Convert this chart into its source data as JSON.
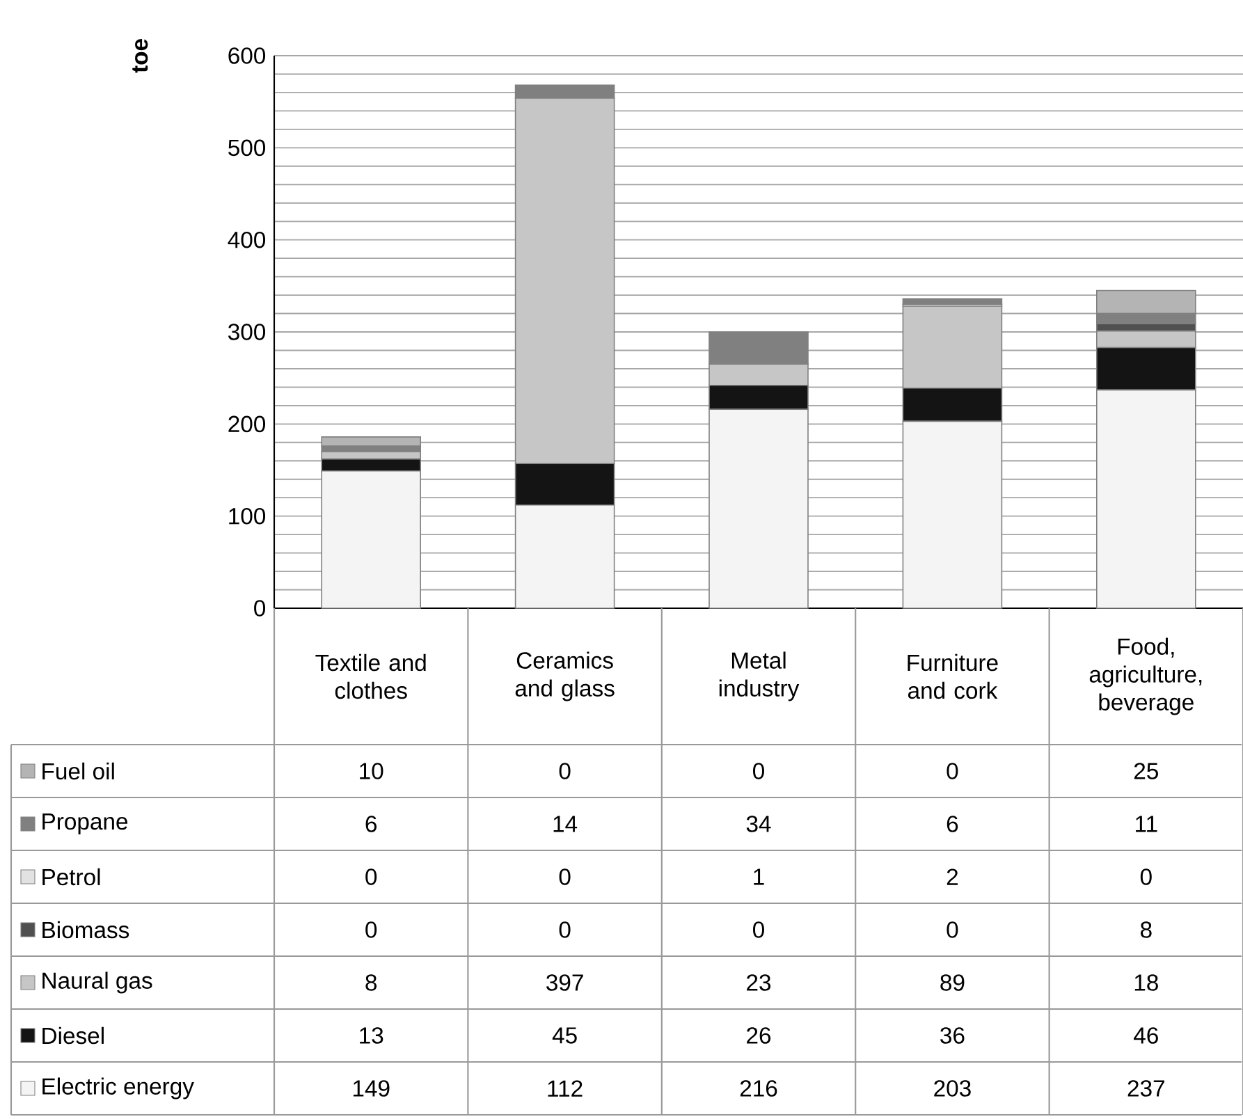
{
  "chart_data": {
    "type": "bar",
    "stacked": true,
    "ylabel": "toe",
    "categories": [
      "Textile and clothes",
      "Ceramics and glass",
      "Metal industry",
      "Furniture and cork",
      "Food, agriculture, beverage"
    ],
    "series": [
      {
        "name": "Electric energy",
        "color": "#f4f4f4",
        "values": [
          149,
          112,
          216,
          203,
          237
        ]
      },
      {
        "name": "Diesel",
        "color": "#141414",
        "values": [
          13,
          45,
          26,
          36,
          46
        ]
      },
      {
        "name": "Naural gas",
        "color": "#c6c6c6",
        "values": [
          8,
          397,
          23,
          89,
          18
        ]
      },
      {
        "name": "Biomass",
        "color": "#505050",
        "values": [
          0,
          0,
          0,
          0,
          8
        ]
      },
      {
        "name": "Petrol",
        "color": "#e2e2e2",
        "values": [
          0,
          0,
          1,
          2,
          0
        ]
      },
      {
        "name": "Propane",
        "color": "#808080",
        "values": [
          6,
          14,
          34,
          6,
          11
        ]
      },
      {
        "name": "Fuel oil",
        "color": "#b4b4b4",
        "values": [
          10,
          0,
          0,
          0,
          25
        ]
      }
    ],
    "ylim": [
      0,
      600
    ],
    "yticks": [
      0,
      {
        "value": 20,
        "label": null
      },
      {
        "value": 40,
        "label": null
      },
      {
        "value": 60,
        "label": null
      },
      {
        "value": 80,
        "label": null
      },
      100,
      {
        "value": 120,
        "label": null
      },
      {
        "value": 140,
        "label": null
      },
      {
        "value": 160,
        "label": null
      },
      {
        "value": 180,
        "label": null
      },
      200,
      {
        "value": 220,
        "label": null
      },
      {
        "value": 240,
        "label": null
      },
      {
        "value": 260,
        "label": null
      },
      {
        "value": 280,
        "label": null
      },
      300,
      {
        "value": 320,
        "label": null
      },
      {
        "value": 340,
        "label": null
      },
      {
        "value": 360,
        "label": null
      },
      {
        "value": 380,
        "label": null
      },
      400,
      {
        "value": 420,
        "label": null
      },
      {
        "value": 440,
        "label": null
      },
      {
        "value": 460,
        "label": null
      },
      {
        "value": 480,
        "label": null
      },
      500,
      {
        "value": 520,
        "label": null
      },
      {
        "value": 540,
        "label": null
      },
      {
        "value": 560,
        "label": null
      },
      {
        "value": 580,
        "label": null
      },
      600
    ],
    "grid": "y",
    "data_labels": true,
    "legend": "bottom left"
  }
}
